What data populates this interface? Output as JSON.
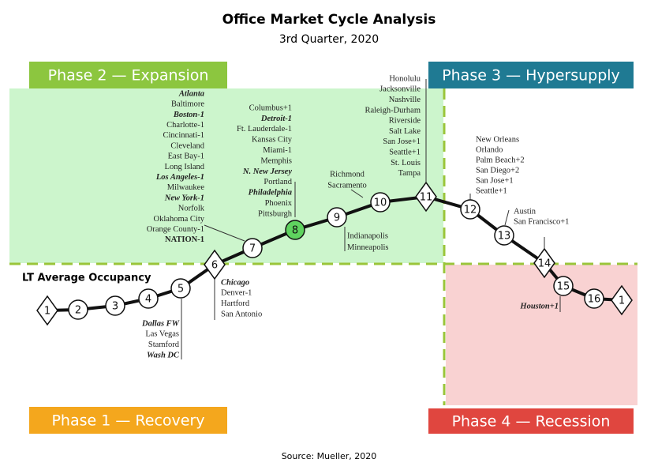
{
  "header": {
    "title": "Office Market Cycle Analysis",
    "subtitle": "3rd Quarter, 2020"
  },
  "phases": [
    {
      "label": "Phase 1 — Recovery",
      "color": "#f4a71d"
    },
    {
      "label": "Phase 2 — Expansion",
      "color": "#8cc63f"
    },
    {
      "label": "Phase 3 — Hypersupply",
      "color": "#1f7a93"
    },
    {
      "label": "Phase 4 — Recession",
      "color": "#e0463f"
    }
  ],
  "lt_label": "LT Average Occupancy",
  "nodes": [
    {
      "label": "1"
    },
    {
      "label": "2"
    },
    {
      "label": "3"
    },
    {
      "label": "4"
    },
    {
      "label": "5"
    },
    {
      "label": "6"
    },
    {
      "label": "7"
    },
    {
      "label": "8"
    },
    {
      "label": "9"
    },
    {
      "label": "10"
    },
    {
      "label": "11"
    },
    {
      "label": "12"
    },
    {
      "label": "13"
    },
    {
      "label": "14"
    },
    {
      "label": "15"
    },
    {
      "label": "16"
    },
    {
      "label": "1"
    }
  ],
  "groups": [
    {
      "lines": [
        {
          "text": "Dallas FW",
          "style": "bold-italic"
        },
        "Las Vegas",
        "Stamford",
        {
          "text": "Wash DC",
          "style": "bold-italic"
        }
      ]
    },
    {
      "lines": [
        {
          "text": "Chicago",
          "style": "bold-italic"
        },
        "Denver-1",
        "Hartford",
        "San Antonio"
      ]
    },
    {
      "lines": [
        {
          "text": "Atlanta",
          "style": "bold-italic"
        },
        "Baltimore",
        {
          "text": "Boston-1",
          "style": "bold-italic"
        },
        "Charlotte-1",
        "Cincinnati-1",
        "Cleveland",
        "East Bay-1",
        "Long Island",
        {
          "text": "Los Angeles-1",
          "style": "bold-italic"
        },
        "Milwaukee",
        {
          "text": "New York-1",
          "style": "bold-italic"
        },
        "Norfolk",
        "Oklahoma City",
        "Orange County-1",
        {
          "text": "NATION-1",
          "style": "bold"
        }
      ]
    },
    {
      "lines": [
        "Columbus+1",
        {
          "text": "Detroit-1",
          "style": "bold-italic"
        },
        "Ft. Lauderdale-1",
        "Kansas City",
        "Miami-1",
        "Memphis",
        {
          "text": "N. New Jersey",
          "style": "bold-italic"
        },
        "Portland",
        {
          "text": "Philadelphia",
          "style": "bold-italic"
        },
        "Phoenix",
        "Pittsburgh"
      ]
    },
    {
      "lines": [
        "Richmond",
        "Sacramento"
      ]
    },
    {
      "lines": [
        "Indianapolis",
        "Minneapolis"
      ]
    },
    {
      "lines": [
        "Honolulu",
        "Jacksonville",
        "Nashville",
        "Raleigh-Durham",
        "Riverside",
        "Salt Lake",
        "San Jose+1",
        "Seattle+1",
        "St. Louis",
        "Tampa"
      ]
    },
    {
      "lines": [
        "New Orleans",
        "Orlando",
        "Palm Beach+2",
        "San Diego+2",
        "San Jose+1",
        "Seattle+1"
      ]
    },
    {
      "lines": [
        "Austin",
        "San Francisco+1"
      ]
    },
    {
      "lines": [
        {
          "text": "Houston+1",
          "style": "bold-italic"
        }
      ]
    }
  ],
  "source": "Source: Mueller, 2020"
}
